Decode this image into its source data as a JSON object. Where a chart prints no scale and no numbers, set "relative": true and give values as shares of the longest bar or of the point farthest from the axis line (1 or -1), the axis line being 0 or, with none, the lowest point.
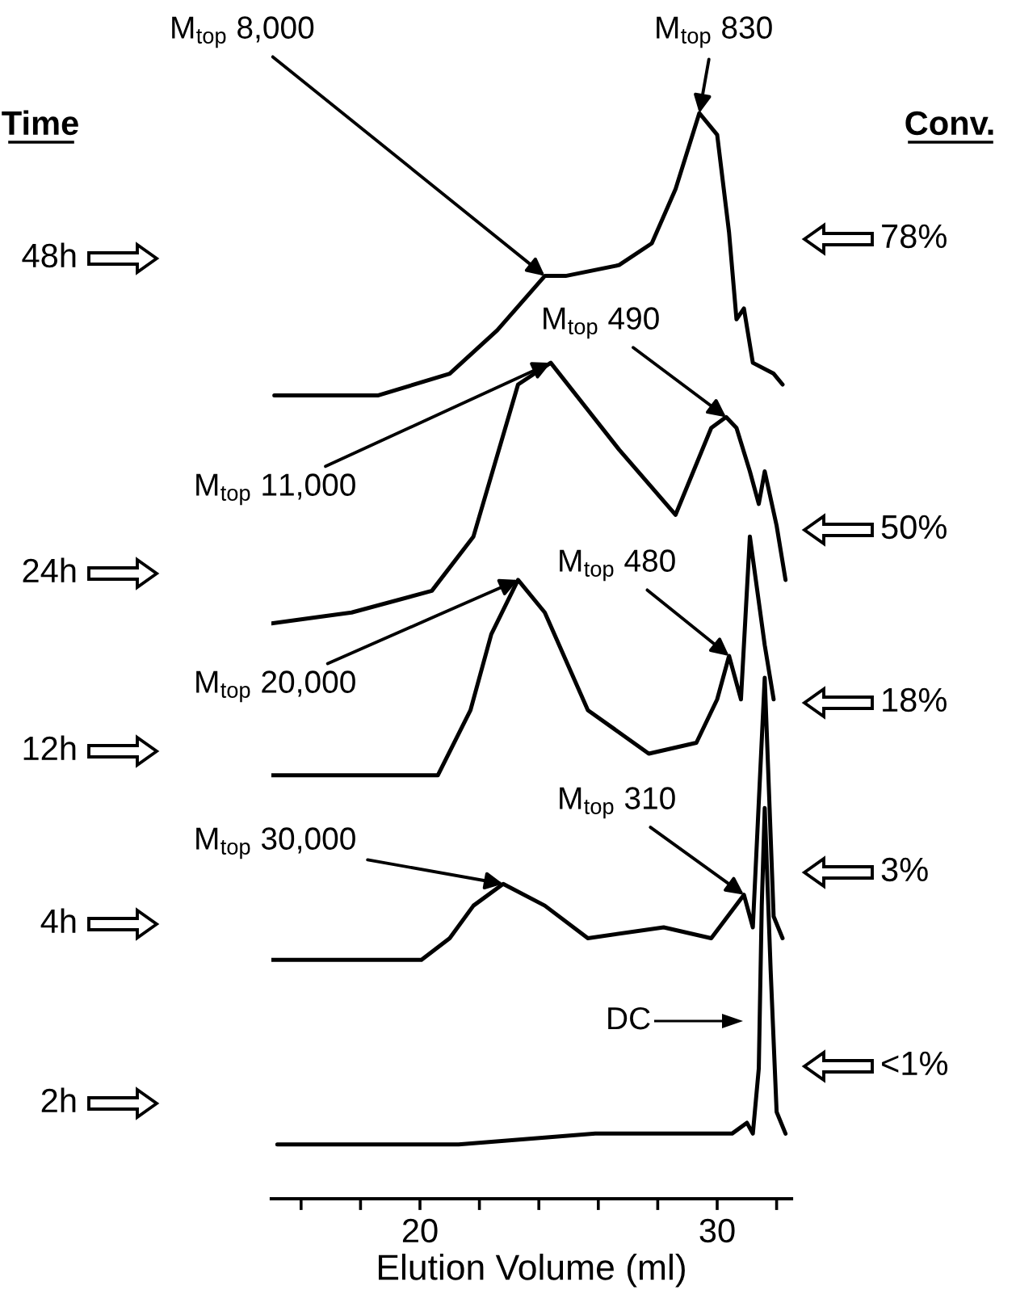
{
  "chart_data": {
    "type": "line",
    "relative": true,
    "xlabel": "Elution Volume (ml)",
    "xlim": [
      15,
      32.5
    ],
    "xticks": [
      {
        "value": 16,
        "label": null
      },
      {
        "value": 18,
        "label": null
      },
      20,
      {
        "value": 22,
        "label": null
      },
      {
        "value": 24,
        "label": null
      },
      {
        "value": 26,
        "label": null
      },
      {
        "value": 28,
        "label": null
      },
      30,
      {
        "value": 32,
        "label": null
      }
    ],
    "grid": false,
    "legend": "left",
    "marker": "none",
    "line_style": "solid",
    "series": [
      {
        "name": "48h",
        "color": "#000000",
        "x": [
          15.1,
          18.6,
          21.0,
          22.6,
          24.2,
          24.9,
          26.7,
          27.8,
          28.6,
          29.4,
          30.0,
          30.4,
          30.65,
          30.9,
          31.2,
          31.9,
          32.2
        ],
        "values": [
          0.74,
          0.74,
          0.76,
          0.8,
          0.85,
          0.85,
          0.86,
          0.88,
          0.93,
          1.0,
          0.98,
          0.89,
          0.81,
          0.82,
          0.77,
          0.76,
          0.75
        ]
      },
      {
        "name": "24h",
        "color": "#000000",
        "x": [
          15.0,
          17.7,
          20.4,
          21.8,
          23.3,
          24.4,
          26.7,
          28.6,
          29.8,
          30.3,
          30.65,
          31.1,
          31.4,
          31.6,
          32.0,
          32.3
        ],
        "values": [
          0.53,
          0.54,
          0.56,
          0.61,
          0.75,
          0.77,
          0.69,
          0.63,
          0.71,
          0.72,
          0.71,
          0.67,
          0.64,
          0.67,
          0.62,
          0.57
        ]
      },
      {
        "name": "12h",
        "color": "#000000",
        "x": [
          15.0,
          20.6,
          21.7,
          22.4,
          23.3,
          24.2,
          25.65,
          27.7,
          29.3,
          30.0,
          30.4,
          30.8,
          31.1,
          31.6,
          31.9
        ],
        "values": [
          0.39,
          0.39,
          0.45,
          0.52,
          0.57,
          0.54,
          0.45,
          0.41,
          0.42,
          0.46,
          0.5,
          0.46,
          0.61,
          0.51,
          0.46
        ]
      },
      {
        "name": "4h",
        "color": "#000000",
        "x": [
          15.0,
          20.05,
          21.0,
          21.8,
          22.8,
          24.2,
          25.65,
          28.2,
          29.8,
          30.9,
          31.2,
          31.6,
          31.9,
          32.2
        ],
        "values": [
          0.22,
          0.22,
          0.24,
          0.27,
          0.29,
          0.27,
          0.24,
          0.25,
          0.24,
          0.28,
          0.25,
          0.48,
          0.26,
          0.24
        ]
      },
      {
        "name": "2h",
        "color": "#000000",
        "x": [
          15.2,
          21.3,
          25.9,
          28.6,
          30.5,
          31.0,
          31.2,
          31.4,
          31.5,
          31.6,
          31.8,
          32.0,
          32.3
        ],
        "values": [
          0.05,
          0.05,
          0.06,
          0.06,
          0.06,
          0.07,
          0.06,
          0.12,
          0.27,
          0.36,
          0.21,
          0.08,
          0.06
        ]
      }
    ],
    "annotations": [
      "Time",
      "Conv.",
      "78%",
      "50%",
      "18%",
      "3%",
      "<1%",
      {
        "text": "M$_{top}$ 8,000",
        "x": 24.2,
        "y": 0.85
      },
      {
        "text": "M$_{top}$ 830",
        "x": 29.4,
        "y": 1.0
      },
      {
        "text": "M$_{top}$ 490",
        "x": 30.3,
        "y": 0.72
      },
      {
        "text": "M$_{top}$ 11,000",
        "x": 24.4,
        "y": 0.77
      },
      {
        "text": "M$_{top}$ 480",
        "x": 30.4,
        "y": 0.5
      },
      {
        "text": "M$_{top}$ 20,000",
        "x": 23.3,
        "y": 0.57
      },
      {
        "text": "M$_{top}$ 30,000",
        "x": 22.8,
        "y": 0.29
      },
      {
        "text": "M$_{top}$ 310",
        "x": 30.9,
        "y": 0.28
      },
      "DC"
    ]
  }
}
